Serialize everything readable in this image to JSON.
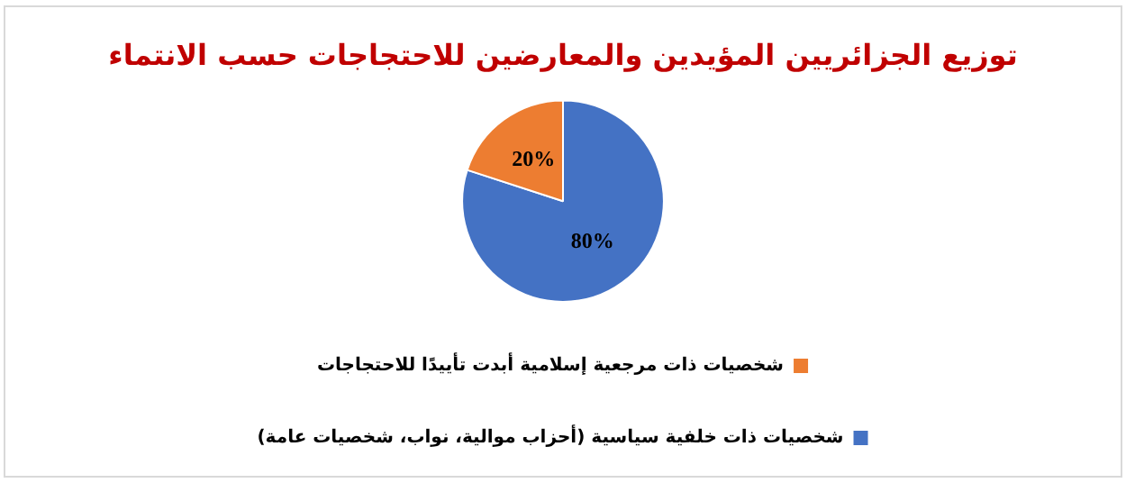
{
  "chart_data": {
    "type": "pie",
    "title": "توزيع الجزائريين المؤيدين والمعارضين للاحتجاجات حسب الانتماء",
    "categories": [
      "شخصيات ذات خلفية سياسية (أحزاب موالية، نواب، شخصيات عامة)",
      "شخصيات ذات مرجعية إسلامية أبدت تأييدًا للاحتجاجات"
    ],
    "values": [
      80,
      20
    ],
    "colors": [
      "#4472c4",
      "#ed7d31"
    ],
    "value_labels": [
      "80%",
      "20%"
    ],
    "legend": "bottom"
  }
}
